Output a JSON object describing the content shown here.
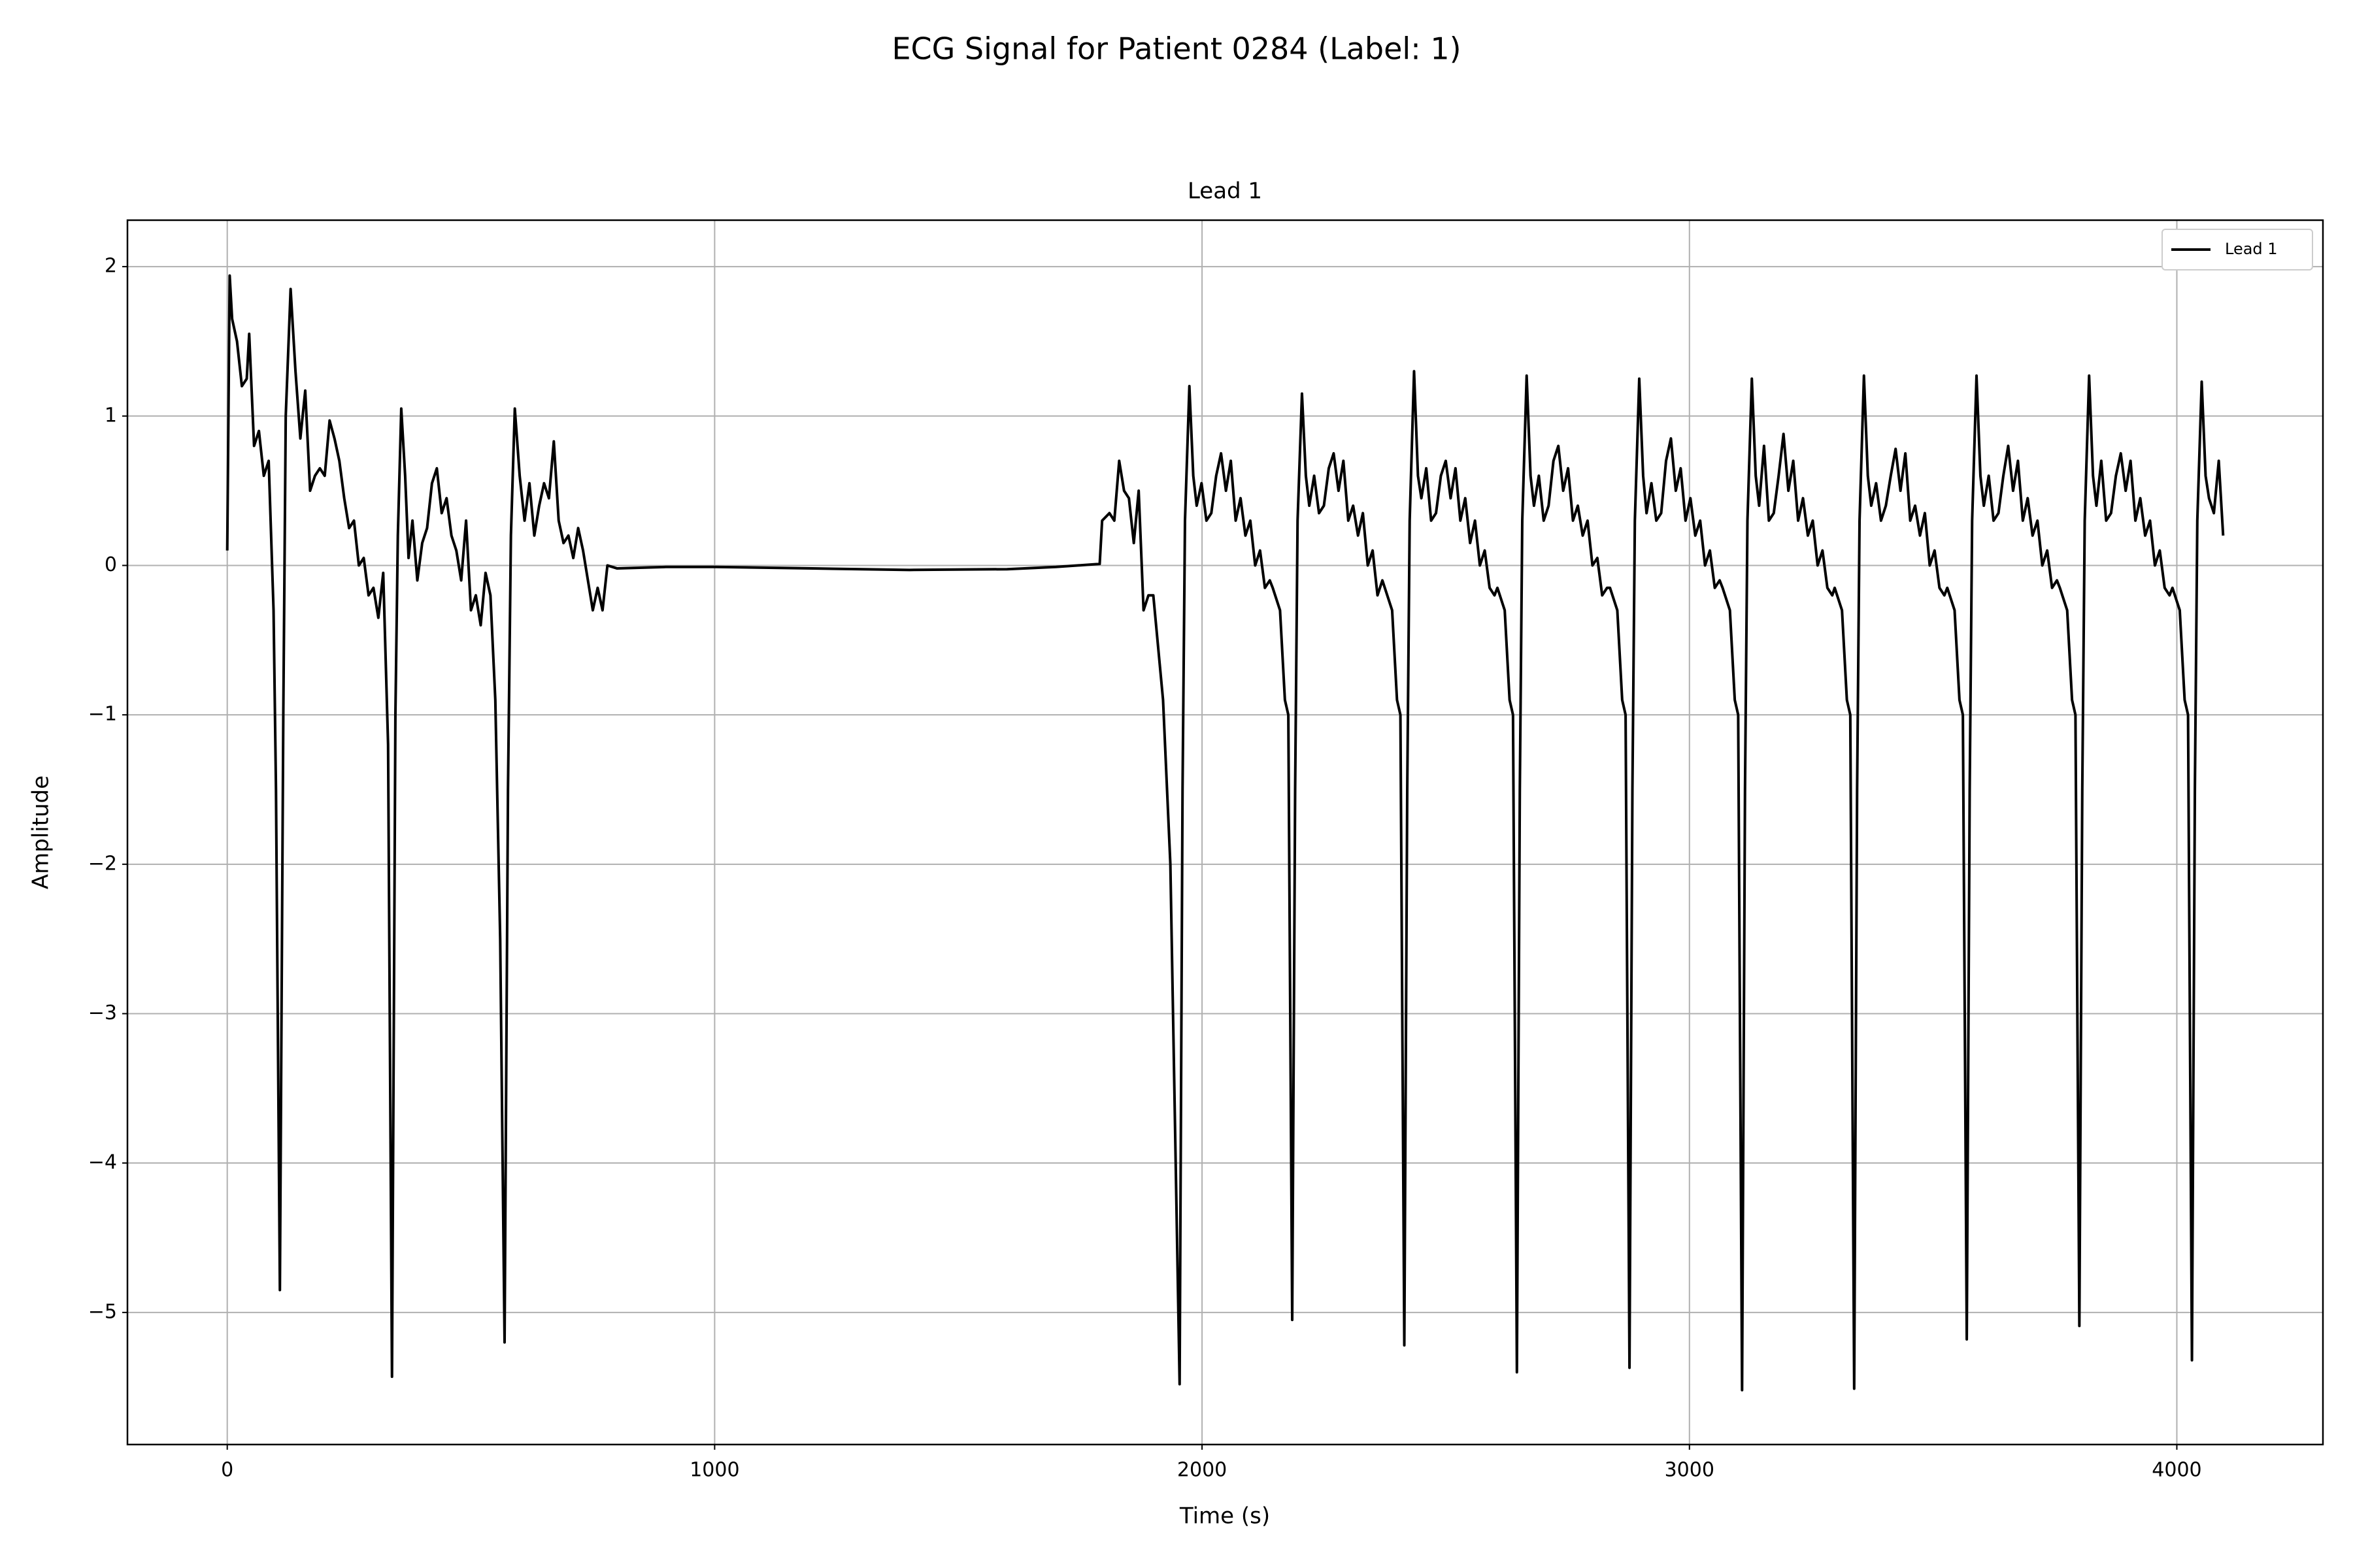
{
  "chart_data": {
    "type": "line",
    "title": "ECG Signal for Patient 0284 (Label: 1)",
    "subplot_title": "Lead 1",
    "xlabel": "Time (s)",
    "ylabel": "Amplitude",
    "xlim": [
      -204.75,
      4299.75
    ],
    "ylim": [
      -5.884,
      2.311
    ],
    "xticks": [
      0,
      1000,
      2000,
      3000,
      4000
    ],
    "yticks": [
      {
        "value": -5,
        "label": "−5"
      },
      {
        "value": -4,
        "label": "−4"
      },
      {
        "value": -3,
        "label": "−3"
      },
      {
        "value": -2,
        "label": "−2"
      },
      {
        "value": -1,
        "label": "−1"
      },
      0,
      1,
      2
    ],
    "grid": true,
    "legend": "upper right",
    "x": [
      0,
      5,
      10,
      20,
      30,
      40,
      45,
      55,
      65,
      75,
      85,
      95,
      100,
      108,
      115,
      120,
      130,
      140,
      150,
      160,
      170,
      180,
      190,
      200,
      210,
      220,
      230,
      240,
      250,
      260,
      270,
      280,
      290,
      300,
      310,
      320,
      330,
      338,
      345,
      350,
      357,
      365,
      372,
      380,
      390,
      400,
      410,
      420,
      430,
      440,
      450,
      460,
      470,
      480,
      490,
      500,
      510,
      520,
      530,
      540,
      550,
      560,
      569,
      576,
      582,
      590,
      600,
      610,
      620,
      630,
      640,
      650,
      660,
      670,
      680,
      690,
      700,
      710,
      720,
      730,
      740,
      750,
      760,
      770,
      780,
      800,
      900,
      1000,
      1200,
      1400,
      1600,
      1700,
      1790,
      1795,
      1810,
      1820,
      1830,
      1840,
      1850,
      1860,
      1870,
      1880,
      1890,
      1900,
      1920,
      1935,
      1954,
      1960,
      1965,
      1974,
      1982,
      1989,
      1999,
      2009,
      2019,
      2029,
      2039,
      2049,
      2059,
      2069,
      2079,
      2089,
      2099,
      2109,
      2119,
      2129,
      2139,
      2145,
      2160,
      2170,
      2177,
      2185,
      2191,
      2196,
      2205,
      2213,
      2220,
      2230,
      2240,
      2250,
      2260,
      2270,
      2280,
      2290,
      2300,
      2310,
      2320,
      2330,
      2340,
      2350,
      2360,
      2370,
      2375,
      2390,
      2400,
      2407,
      2415,
      2421,
      2426,
      2435,
      2443,
      2450,
      2460,
      2470,
      2480,
      2490,
      2500,
      2510,
      2520,
      2530,
      2540,
      2550,
      2560,
      2570,
      2580,
      2590,
      2600,
      2606,
      2621,
      2631,
      2638,
      2646,
      2652,
      2657,
      2666,
      2674,
      2681,
      2691,
      2701,
      2711,
      2721,
      2731,
      2741,
      2751,
      2761,
      2771,
      2781,
      2791,
      2801,
      2811,
      2821,
      2831,
      2837,
      2852,
      2862,
      2869,
      2877,
      2883,
      2888,
      2897,
      2905,
      2912,
      2922,
      2932,
      2942,
      2952,
      2962,
      2972,
      2982,
      2992,
      3002,
      3012,
      3022,
      3032,
      3042,
      3052,
      3062,
      3068,
      3083,
      3093,
      3100,
      3108,
      3114,
      3119,
      3128,
      3136,
      3143,
      3153,
      3163,
      3173,
      3183,
      3193,
      3203,
      3213,
      3223,
      3233,
      3243,
      3253,
      3263,
      3273,
      3283,
      3293,
      3298,
      3313,
      3323,
      3330,
      3338,
      3344,
      3349,
      3358,
      3366,
      3373,
      3383,
      3393,
      3403,
      3413,
      3423,
      3433,
      3443,
      3453,
      3463,
      3473,
      3483,
      3493,
      3503,
      3513,
      3523,
      3529,
      3544,
      3554,
      3561,
      3569,
      3575,
      3580,
      3589,
      3597,
      3604,
      3614,
      3624,
      3634,
      3644,
      3654,
      3664,
      3674,
      3684,
      3694,
      3704,
      3714,
      3724,
      3734,
      3744,
      3754,
      3760,
      3775,
      3785,
      3792,
      3800,
      3806,
      3811,
      3820,
      3828,
      3835,
      3845,
      3855,
      3865,
      3875,
      3885,
      3895,
      3905,
      3915,
      3925,
      3935,
      3945,
      3955,
      3965,
      3975,
      3985,
      3991,
      4006,
      4016,
      4023,
      4031,
      4037,
      4042,
      4051,
      4059,
      4066,
      4076,
      4086,
      4095
    ],
    "series": [
      {
        "name": "Lead 1",
        "color": "#000000",
        "values": [
          0.1,
          1.94,
          1.65,
          1.5,
          1.2,
          1.25,
          1.55,
          0.8,
          0.9,
          0.6,
          0.7,
          -0.3,
          -1.5,
          -4.85,
          -1.0,
          1.0,
          1.85,
          1.3,
          0.85,
          1.17,
          0.5,
          0.6,
          0.65,
          0.6,
          0.97,
          0.85,
          0.7,
          0.45,
          0.25,
          0.3,
          0.0,
          0.05,
          -0.2,
          -0.15,
          -0.35,
          -0.05,
          -1.2,
          -5.43,
          -1.0,
          0.2,
          1.05,
          0.6,
          0.05,
          0.3,
          -0.1,
          0.15,
          0.25,
          0.55,
          0.65,
          0.35,
          0.45,
          0.2,
          0.1,
          -0.1,
          0.3,
          -0.3,
          -0.2,
          -0.4,
          -0.05,
          -0.2,
          -0.9,
          -2.5,
          -5.2,
          -1.5,
          0.2,
          1.05,
          0.6,
          0.3,
          0.55,
          0.2,
          0.4,
          0.55,
          0.45,
          0.83,
          0.3,
          0.15,
          0.2,
          0.05,
          0.25,
          0.1,
          -0.1,
          -0.3,
          -0.15,
          -0.3,
          0.0,
          -0.02,
          -0.01,
          -0.01,
          -0.02,
          -0.03,
          -0.025,
          -0.01,
          0.01,
          0.3,
          0.35,
          0.3,
          0.7,
          0.5,
          0.45,
          0.15,
          0.5,
          -0.3,
          -0.2,
          -0.2,
          -0.9,
          -2.0,
          -5.48,
          -1.5,
          0.3,
          1.2,
          0.6,
          0.4,
          0.55,
          0.3,
          0.35,
          0.6,
          0.75,
          0.5,
          0.7,
          0.3,
          0.45,
          0.2,
          0.3,
          0.0,
          0.1,
          -0.15,
          -0.1,
          -0.15,
          -0.3,
          -0.9,
          -1.0,
          -5.05,
          -1.5,
          0.3,
          1.15,
          0.6,
          0.4,
          0.6,
          0.35,
          0.4,
          0.65,
          0.75,
          0.5,
          0.7,
          0.3,
          0.4,
          0.2,
          0.35,
          0.0,
          0.1,
          -0.2,
          -0.1,
          -0.15,
          -0.3,
          -0.9,
          -1.0,
          -5.22,
          -1.5,
          0.3,
          1.3,
          0.6,
          0.45,
          0.65,
          0.3,
          0.35,
          0.6,
          0.7,
          0.45,
          0.65,
          0.3,
          0.45,
          0.15,
          0.3,
          0.0,
          0.1,
          -0.15,
          -0.2,
          -0.15,
          -0.3,
          -0.9,
          -1.0,
          -5.4,
          -1.5,
          0.3,
          1.27,
          0.6,
          0.4,
          0.6,
          0.3,
          0.4,
          0.7,
          0.8,
          0.5,
          0.65,
          0.3,
          0.4,
          0.2,
          0.3,
          0.0,
          0.05,
          -0.2,
          -0.15,
          -0.15,
          -0.3,
          -0.9,
          -1.0,
          -5.37,
          -1.5,
          0.3,
          1.25,
          0.6,
          0.35,
          0.55,
          0.3,
          0.35,
          0.7,
          0.85,
          0.5,
          0.65,
          0.3,
          0.45,
          0.2,
          0.3,
          0.0,
          0.1,
          -0.15,
          -0.1,
          -0.15,
          -0.3,
          -0.9,
          -1.0,
          -5.52,
          -1.5,
          0.3,
          1.25,
          0.6,
          0.4,
          0.8,
          0.3,
          0.35,
          0.6,
          0.88,
          0.5,
          0.7,
          0.3,
          0.45,
          0.2,
          0.3,
          0.0,
          0.1,
          -0.15,
          -0.2,
          -0.15,
          -0.3,
          -0.9,
          -1.0,
          -5.51,
          -1.5,
          0.3,
          1.27,
          0.6,
          0.4,
          0.55,
          0.3,
          0.4,
          0.6,
          0.78,
          0.5,
          0.75,
          0.3,
          0.4,
          0.2,
          0.35,
          0.0,
          0.1,
          -0.15,
          -0.2,
          -0.15,
          -0.3,
          -0.9,
          -1.0,
          -5.18,
          -1.5,
          0.3,
          1.27,
          0.6,
          0.4,
          0.6,
          0.3,
          0.35,
          0.6,
          0.8,
          0.5,
          0.7,
          0.3,
          0.45,
          0.2,
          0.3,
          0.0,
          0.1,
          -0.15,
          -0.1,
          -0.15,
          -0.3,
          -0.9,
          -1.0,
          -5.09,
          -1.5,
          0.3,
          1.27,
          0.6,
          0.4,
          0.7,
          0.3,
          0.35,
          0.6,
          0.75,
          0.5,
          0.7,
          0.3,
          0.45,
          0.2,
          0.3,
          0.0,
          0.1,
          -0.15,
          -0.2,
          -0.15,
          -0.3,
          -0.9,
          -1.0,
          -5.32,
          -1.5,
          0.3,
          1.23,
          0.6,
          0.45,
          0.35,
          0.7,
          0.2
        ]
      }
    ]
  }
}
